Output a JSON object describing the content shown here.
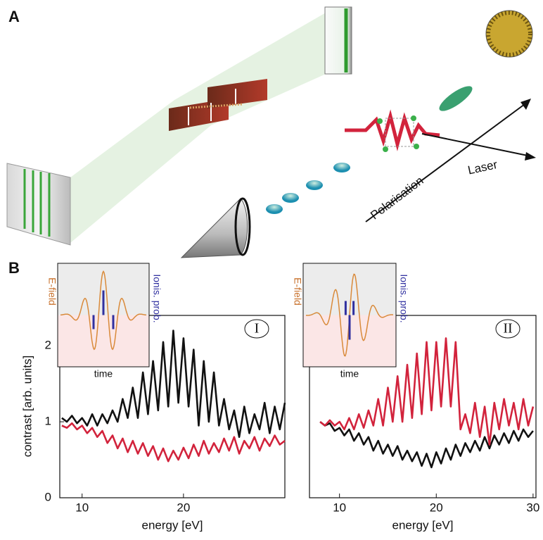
{
  "panel_a": {
    "label": "A",
    "laser_label": "Laser",
    "polarisation_label": "Polarisation"
  },
  "panel_b": {
    "label": "B"
  },
  "chart_data": [
    {
      "type": "line",
      "xlabel": "energy [eV]",
      "ylabel": "contrast [arb. units]",
      "annotation": "I",
      "inset": {
        "left_label": "E-field",
        "right_label": "Ionis. prob.",
        "bottom_label": "time"
      },
      "xlim": [
        7.8,
        30
      ],
      "xticks": [
        10,
        20
      ],
      "ylim": [
        0,
        2.4
      ],
      "yticks": [
        0,
        1,
        2
      ],
      "x": [
        8,
        8.5,
        9,
        9.5,
        10,
        10.5,
        11,
        11.5,
        12,
        12.5,
        13,
        13.5,
        14,
        14.5,
        15,
        15.5,
        16,
        16.5,
        17,
        17.5,
        18,
        18.5,
        19,
        19.5,
        20,
        20.5,
        21,
        21.5,
        22,
        22.5,
        23,
        23.5,
        24,
        24.5,
        25,
        25.5,
        26,
        26.5,
        27,
        27.5,
        28,
        28.5,
        29,
        29.5,
        30
      ],
      "series": [
        {
          "color": "#111111",
          "values": [
            1.05,
            1.0,
            1.08,
            0.98,
            1.05,
            0.95,
            1.1,
            0.95,
            1.1,
            0.98,
            1.15,
            1.0,
            1.3,
            1.05,
            1.45,
            1.05,
            1.65,
            1.1,
            1.8,
            1.15,
            2.05,
            1.2,
            2.2,
            1.25,
            2.1,
            1.2,
            1.95,
            0.95,
            1.8,
            1.0,
            1.65,
            0.95,
            1.3,
            0.9,
            1.15,
            0.8,
            1.2,
            0.85,
            1.1,
            0.9,
            1.25,
            0.85,
            1.2,
            0.9,
            1.25
          ]
        },
        {
          "color": "#d2233c",
          "values": [
            0.95,
            0.92,
            0.98,
            0.9,
            0.95,
            0.85,
            0.92,
            0.8,
            0.88,
            0.72,
            0.82,
            0.65,
            0.78,
            0.6,
            0.75,
            0.58,
            0.72,
            0.55,
            0.68,
            0.5,
            0.65,
            0.48,
            0.62,
            0.5,
            0.66,
            0.52,
            0.7,
            0.55,
            0.75,
            0.58,
            0.72,
            0.6,
            0.78,
            0.62,
            0.8,
            0.58,
            0.75,
            0.65,
            0.8,
            0.62,
            0.78,
            0.68,
            0.82,
            0.7,
            0.75
          ]
        }
      ]
    },
    {
      "type": "line",
      "xlabel": "energy [eV]",
      "annotation": "II",
      "inset": {
        "left_label": "E-field",
        "right_label": "Ionis. prob.",
        "bottom_label": "time"
      },
      "xlim": [
        6.9,
        30.3
      ],
      "xticks": [
        10,
        20,
        30
      ],
      "ylim": [
        0,
        2.4
      ],
      "x": [
        8,
        8.5,
        9,
        9.5,
        10,
        10.5,
        11,
        11.5,
        12,
        12.5,
        13,
        13.5,
        14,
        14.5,
        15,
        15.5,
        16,
        16.5,
        17,
        17.5,
        18,
        18.5,
        19,
        19.5,
        20,
        20.5,
        21,
        21.5,
        22,
        22.5,
        23,
        23.5,
        24,
        24.5,
        25,
        25.5,
        26,
        26.5,
        27,
        27.5,
        28,
        28.5,
        29,
        29.5,
        30
      ],
      "series": [
        {
          "color": "#111111",
          "values": [
            1.0,
            0.95,
            0.98,
            0.88,
            0.92,
            0.82,
            0.9,
            0.75,
            0.85,
            0.7,
            0.8,
            0.62,
            0.75,
            0.58,
            0.7,
            0.55,
            0.68,
            0.5,
            0.62,
            0.48,
            0.6,
            0.42,
            0.58,
            0.4,
            0.6,
            0.45,
            0.65,
            0.5,
            0.7,
            0.55,
            0.72,
            0.6,
            0.75,
            0.62,
            0.8,
            0.65,
            0.82,
            0.7,
            0.85,
            0.72,
            0.88,
            0.75,
            0.9,
            0.8,
            0.88
          ]
        },
        {
          "color": "#d2233c",
          "values": [
            1.0,
            0.95,
            1.02,
            0.95,
            1.0,
            0.9,
            1.05,
            0.9,
            1.1,
            0.92,
            1.15,
            0.95,
            1.3,
            0.95,
            1.45,
            1.0,
            1.6,
            1.0,
            1.75,
            1.05,
            1.9,
            1.1,
            2.05,
            1.15,
            2.05,
            1.2,
            2.1,
            1.2,
            2.05,
            0.9,
            1.1,
            0.85,
            1.25,
            0.8,
            1.2,
            0.7,
            1.25,
            0.9,
            1.3,
            0.95,
            1.25,
            0.9,
            1.3,
            0.95,
            1.2
          ]
        }
      ]
    }
  ]
}
